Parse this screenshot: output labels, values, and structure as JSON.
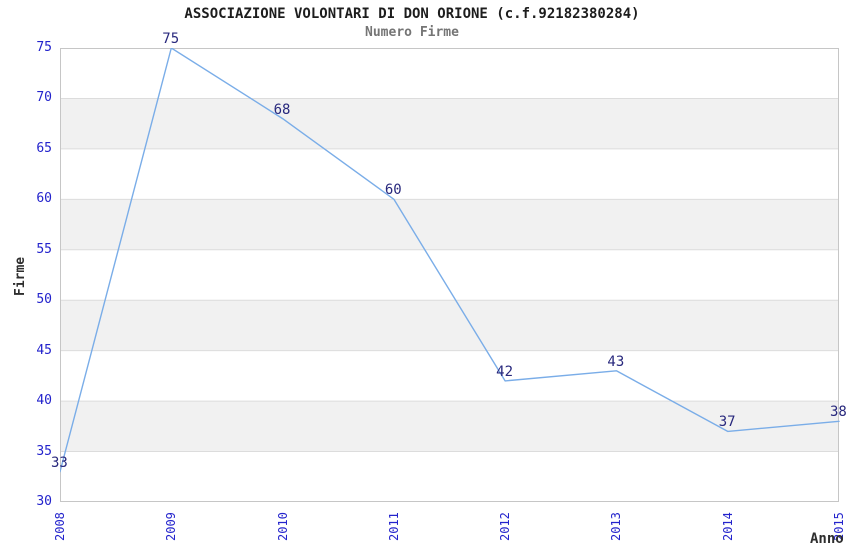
{
  "header": {
    "title": "ASSOCIAZIONE VOLONTARI DI DON ORIONE (c.f.92182380284)",
    "subtitle": "Numero Firme"
  },
  "chart_data": {
    "type": "line",
    "title": "ASSOCIAZIONE VOLONTARI DI DON ORIONE (c.f.92182380284)",
    "subtitle": "Numero Firme",
    "xlabel": "Anno",
    "ylabel": "Firme",
    "categories": [
      "2008",
      "2009",
      "2010",
      "2011",
      "2012",
      "2013",
      "2014",
      "2015"
    ],
    "series": [
      {
        "name": "Numero Firme",
        "values": [
          33,
          75,
          68,
          60,
          42,
          43,
          37,
          38
        ]
      }
    ],
    "point_labels": [
      "33",
      "75",
      "68",
      "60",
      "42",
      "43",
      "37",
      "38"
    ],
    "ylim": [
      30,
      75
    ],
    "ytick_step": 5,
    "grid": true,
    "alternating_bands": true,
    "legend_position": "none"
  },
  "colors": {
    "line": "#7aade8",
    "tick_label": "#2323cc",
    "point_label": "#28287d",
    "band_gray": "#f1f1f1",
    "gridline": "#dcdcdc",
    "plot_border": "#c6c6c6",
    "title": "#1d1d1d",
    "subtitle": "#757575",
    "axis_title": "#2e2e2e",
    "background": "#ffffff"
  }
}
